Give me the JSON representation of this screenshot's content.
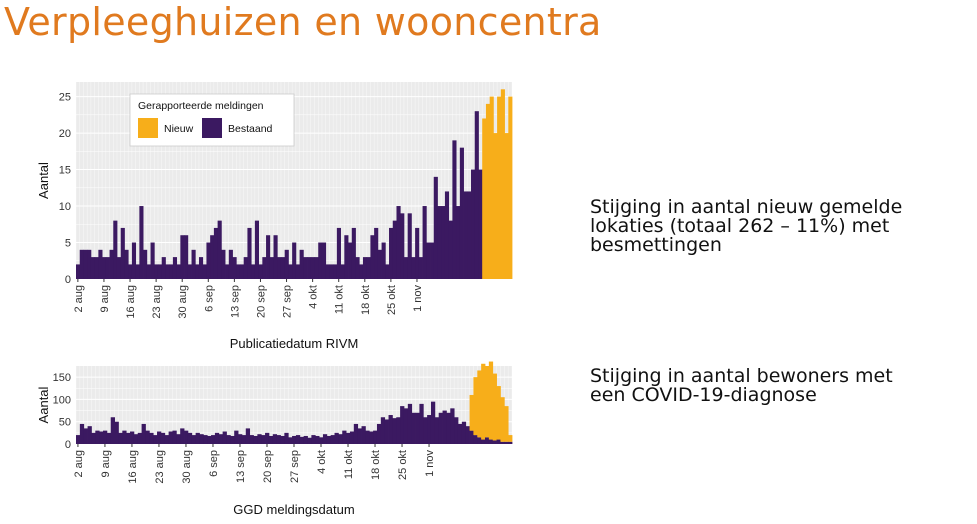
{
  "title": "Verpleeghuizen en wooncentra",
  "notes": [
    {
      "lines": [
        "Stijging in aantal nieuw gemelde",
        "lokaties (totaal 262 – 11%) met",
        "besmettingen"
      ]
    },
    {
      "lines": [
        "Stijging in aantal bewoners met",
        "een COVID-19-diagnose"
      ]
    }
  ],
  "colors": {
    "new": "#f7ae1a",
    "existing": "#3b1961",
    "title": "#e07a1f"
  },
  "chart_data": [
    {
      "type": "bar",
      "stacked": true,
      "xlabel": "Publicatiedatum RIVM",
      "ylabel": "Aantal",
      "ylim": [
        0,
        27
      ],
      "yticks": [
        0,
        5,
        10,
        15,
        20,
        25
      ],
      "xticks": [
        "2 aug",
        "9 aug",
        "16 aug",
        "23 aug",
        "30 aug",
        "6 sep",
        "13 sep",
        "20 sep",
        "27 sep",
        "4 okt",
        "11 okt",
        "18 okt",
        "25 okt",
        "1 nov"
      ],
      "legend": {
        "title": "Gerapporteerde meldingen",
        "entries": [
          "Nieuw",
          "Bestaand"
        ],
        "position": "top-left"
      },
      "days": 97,
      "series": [
        {
          "name": "Bestaand",
          "values": [
            2,
            4,
            4,
            4,
            3,
            3,
            4,
            3,
            3,
            4,
            3,
            4,
            4,
            8,
            3,
            3,
            7,
            4,
            3,
            2,
            5,
            2,
            2,
            10,
            4,
            2,
            2,
            5,
            2,
            2,
            4,
            2,
            2,
            3,
            2,
            2,
            3,
            2,
            2,
            3,
            6,
            6,
            6,
            2,
            2,
            4,
            2,
            2,
            3,
            2,
            5,
            5,
            6,
            7,
            8,
            7,
            4,
            2,
            4,
            4,
            3,
            3,
            2,
            2,
            3,
            7,
            2,
            2,
            8,
            2,
            2,
            3,
            3,
            6,
            3,
            3,
            6,
            3,
            4,
            3,
            2,
            2,
            5,
            2,
            2,
            4,
            3,
            3,
            3,
            3,
            3,
            5,
            5,
            5,
            2,
            2,
            2,
            2,
            7,
            2,
            2,
            6,
            5,
            7,
            7,
            3,
            2,
            2,
            3,
            3,
            6,
            2,
            7,
            4,
            2,
            5,
            5,
            2,
            2,
            2,
            7,
            7,
            8,
            8,
            10,
            9,
            3,
            3,
            9,
            3,
            3,
            7,
            3,
            3,
            10,
            5,
            5,
            5,
            14,
            14,
            10,
            10,
            10,
            12,
            12,
            8,
            8,
            19,
            19,
            10,
            10,
            18,
            18,
            12,
            12,
            12,
            12,
            15,
            15,
            15,
            23,
            23,
            23,
            15,
            15,
            15
          ]
        },
        {
          "name": "Nieuw",
          "values": []
        }
      ]
    },
    {
      "type": "bar",
      "stacked": true,
      "xlabel": "GGD meldingsdatum",
      "ylabel": "Aantal",
      "ylim": [
        0,
        175
      ],
      "yticks": [
        0,
        50,
        100,
        150
      ],
      "xticks": [
        "2 aug",
        "9 aug",
        "16 aug",
        "23 aug",
        "30 aug",
        "6 sep",
        "13 sep",
        "20 sep",
        "27 sep",
        "4 okt",
        "11 okt",
        "18 okt",
        "25 okt",
        "1 nov"
      ],
      "series": [
        {
          "name": "Bestaand",
          "values": []
        },
        {
          "name": "Nieuw",
          "values": []
        }
      ]
    }
  ]
}
